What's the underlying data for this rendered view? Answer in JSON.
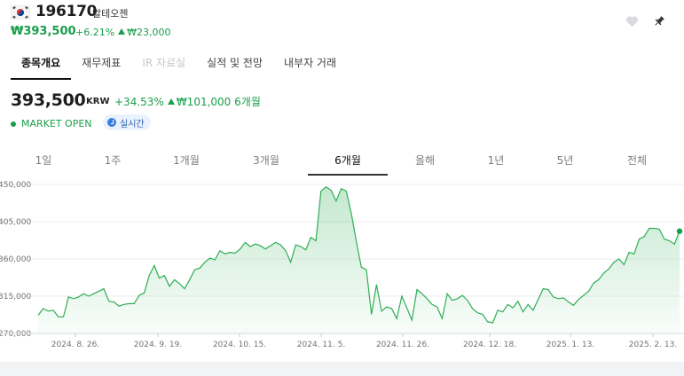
{
  "header": {
    "ticker": "196170",
    "company": "알테오젠",
    "price": "₩393,500",
    "change_pct": "+6.21%",
    "change_amt": "₩23,000"
  },
  "tabs": [
    {
      "label": "종목개요",
      "active": true
    },
    {
      "label": "재무제표"
    },
    {
      "label": "IR 자료실",
      "disabled": true
    },
    {
      "label": "실적 및 전망"
    },
    {
      "label": "내부자 거래"
    }
  ],
  "quote": {
    "price": "393,500",
    "currency": "KRW",
    "change_pct": "+34.53%",
    "change_amt": "₩101,000",
    "period": "6개월",
    "market_status": "MARKET OPEN",
    "realtime": "실시간"
  },
  "periods": [
    "1일",
    "1주",
    "1개월",
    "3개월",
    "6개월",
    "올해",
    "1년",
    "5년",
    "전체"
  ],
  "active_period": "6개월",
  "colors": {
    "up": "#1a9e4b",
    "line": "#2fae56"
  },
  "chart_data": {
    "type": "area",
    "y_ticks": [
      "450,000",
      "405,000",
      "360,000",
      "315,000",
      "270,000"
    ],
    "ylim": [
      270000,
      450000
    ],
    "x_ticks": [
      "2024. 8. 26.",
      "2024. 9. 19.",
      "2024. 10. 15.",
      "2024. 11. 5.",
      "2024. 11. 26.",
      "2024. 12. 18.",
      "2025. 1. 13.",
      "2025. 2. 13."
    ],
    "values": [
      292000,
      300000,
      297000,
      298000,
      290000,
      290000,
      314000,
      312000,
      314000,
      318000,
      315000,
      318000,
      321000,
      324000,
      309000,
      308000,
      303000,
      305000,
      306000,
      306000,
      316000,
      319000,
      340000,
      352000,
      337000,
      340000,
      327000,
      335000,
      330000,
      324000,
      335000,
      347000,
      349000,
      356000,
      361000,
      359000,
      370000,
      366000,
      368000,
      367000,
      372000,
      380000,
      375000,
      378000,
      376000,
      372000,
      376000,
      380000,
      377000,
      370000,
      356000,
      377000,
      375000,
      371000,
      386000,
      382000,
      442000,
      447000,
      443000,
      430000,
      445000,
      442000,
      415000,
      381000,
      350000,
      347000,
      293000,
      329000,
      297000,
      302000,
      300000,
      288000,
      315000,
      301000,
      286000,
      323000,
      318000,
      312000,
      305000,
      302000,
      288000,
      318000,
      310000,
      312000,
      316000,
      310000,
      300000,
      295000,
      293000,
      284000,
      283000,
      298000,
      296000,
      305000,
      301000,
      309000,
      296000,
      305000,
      298000,
      311000,
      324000,
      323000,
      314000,
      312000,
      313000,
      308000,
      304000,
      311000,
      316000,
      321000,
      331000,
      335000,
      343000,
      348000,
      356000,
      360000,
      353000,
      368000,
      366000,
      384000,
      387000,
      397000,
      397000,
      396000,
      384000,
      382000,
      378000,
      394000
    ],
    "last_value": 393500
  }
}
